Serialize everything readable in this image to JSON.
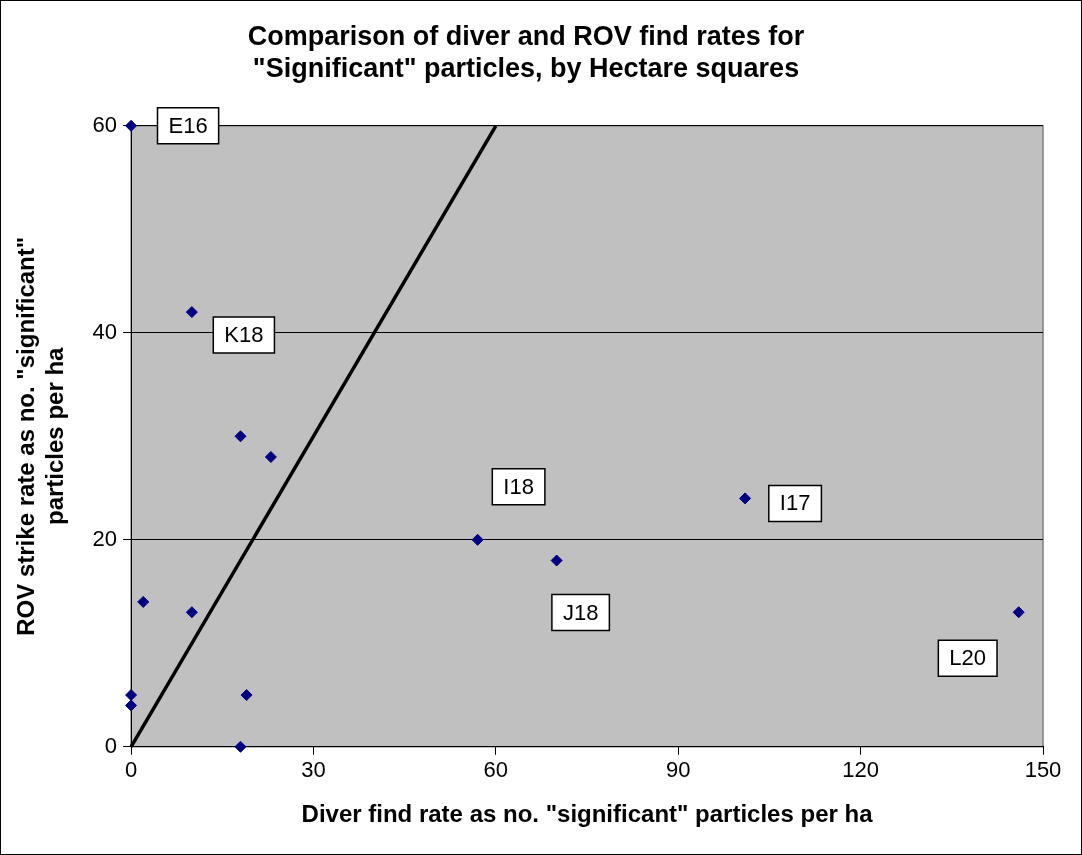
{
  "chart_data": {
    "type": "scatter",
    "title": "Comparison of diver and ROV find rates for \"Significant\" particles, by Hectare squares",
    "xlabel": "Diver find rate as no. \"significant\" particles per ha",
    "ylabel": "ROV strike rate as no. \"significant\" particles per ha",
    "series": [
      {
        "color": "#000080",
        "x": [
          0,
          10,
          18,
          23,
          2,
          10,
          0,
          0,
          19,
          18,
          57,
          70,
          101,
          146
        ],
        "values": [
          60,
          42,
          30,
          28,
          14,
          13,
          5,
          4,
          5,
          0,
          20,
          18,
          24,
          13
        ]
      },
      {
        "type": "line",
        "color": "#000000",
        "marker": "none",
        "x": [
          0,
          60
        ],
        "values": [
          0,
          60
        ]
      }
    ],
    "annotations": [
      {
        "text": "E16",
        "x": 0,
        "y": 60
      },
      {
        "text": "K18",
        "x": 10,
        "y": 42
      },
      {
        "text": "I18",
        "x": 57,
        "y": 20
      },
      {
        "text": "J18",
        "x": 70,
        "y": 18
      },
      {
        "text": "I17",
        "x": 101,
        "y": 24
      },
      {
        "text": "L20",
        "x": 146,
        "y": 13
      }
    ],
    "xlim": [
      0,
      150
    ],
    "xticks": [
      0,
      30,
      60,
      90,
      120,
      150
    ],
    "ylim": [
      0,
      60
    ],
    "yticks": [
      0,
      20,
      40,
      60
    ],
    "grid": "y",
    "marker": "diamond",
    "line_style": "solid",
    "legend": false
  }
}
